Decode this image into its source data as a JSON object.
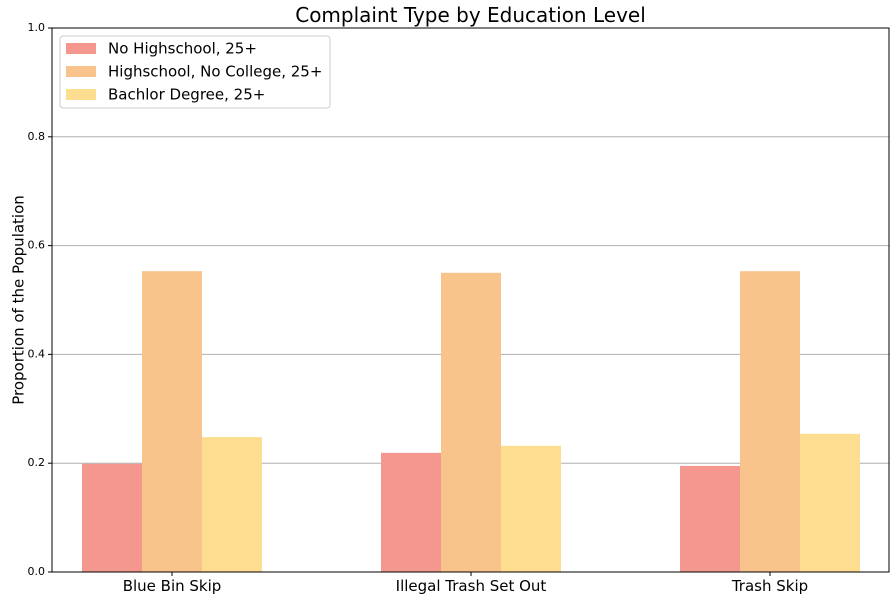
{
  "chart_data": {
    "type": "bar",
    "title": "Complaint Type by Education Level",
    "xlabel": "",
    "ylabel": "Proportion of the Population",
    "ylim": [
      0,
      1.0
    ],
    "yticks": [
      0.0,
      0.2,
      0.4,
      0.6,
      0.8,
      1.0
    ],
    "ytick_labels": [
      "0.0",
      "0.2",
      "0.4",
      "0.6",
      "0.8",
      "1.0"
    ],
    "grid": "horizontal",
    "legend_position": "top-left",
    "categories": [
      "Blue Bin Skip",
      "Illegal Trash Set Out",
      "Trash Skip"
    ],
    "series": [
      {
        "name": "No Highschool, 25+",
        "color": "#f4978e",
        "values": [
          0.199,
          0.219,
          0.195
        ]
      },
      {
        "name": "Highschool, No College, 25+",
        "color": "#f9c48c",
        "values": [
          0.553,
          0.55,
          0.553
        ]
      },
      {
        "name": "Bachlor Degree, 25+",
        "color": "#fddd8f",
        "values": [
          0.248,
          0.232,
          0.254
        ]
      }
    ]
  }
}
